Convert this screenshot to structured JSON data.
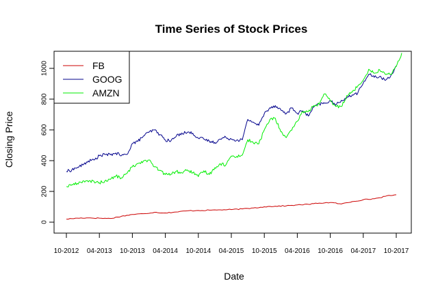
{
  "chart_data": {
    "type": "line",
    "title": "Time Series of Stock Prices",
    "xlabel": "Date",
    "ylabel": "Closing Price",
    "x_ticks": [
      "10-2012",
      "04-2013",
      "10-2013",
      "04-2014",
      "10-2014",
      "04-2015",
      "10-2015",
      "04-2016",
      "10-2016",
      "04-2017",
      "10-2017"
    ],
    "y_ticks": [
      0,
      200,
      400,
      600,
      800,
      1000
    ],
    "ylim": [
      -30,
      1130
    ],
    "xlim": [
      "2012-08",
      "2017-12"
    ],
    "grid": false,
    "legend_position": "top-left",
    "series": [
      {
        "name": "FB",
        "color": "#cc0000",
        "points": [
          [
            "2012-10",
            20
          ],
          [
            "2012-12",
            26
          ],
          [
            "2013-02",
            28
          ],
          [
            "2013-04",
            26
          ],
          [
            "2013-06",
            24
          ],
          [
            "2013-08",
            38
          ],
          [
            "2013-10",
            50
          ],
          [
            "2013-12",
            55
          ],
          [
            "2014-02",
            64
          ],
          [
            "2014-04",
            60
          ],
          [
            "2014-06",
            66
          ],
          [
            "2014-08",
            74
          ],
          [
            "2014-10",
            76
          ],
          [
            "2014-12",
            78
          ],
          [
            "2015-02",
            80
          ],
          [
            "2015-04",
            82
          ],
          [
            "2015-06",
            86
          ],
          [
            "2015-08",
            92
          ],
          [
            "2015-10",
            100
          ],
          [
            "2015-12",
            104
          ],
          [
            "2016-02",
            106
          ],
          [
            "2016-04",
            112
          ],
          [
            "2016-06",
            116
          ],
          [
            "2016-08",
            124
          ],
          [
            "2016-10",
            128
          ],
          [
            "2016-12",
            118
          ],
          [
            "2017-02",
            134
          ],
          [
            "2017-04",
            146
          ],
          [
            "2017-06",
            152
          ],
          [
            "2017-08",
            168
          ],
          [
            "2017-10",
            178
          ]
        ]
      },
      {
        "name": "GOOG",
        "color": "#00008b",
        "points": [
          [
            "2012-10",
            330
          ],
          [
            "2012-11",
            340
          ],
          [
            "2012-12",
            356
          ],
          [
            "2013-01",
            372
          ],
          [
            "2013-02",
            398
          ],
          [
            "2013-03",
            404
          ],
          [
            "2013-04",
            432
          ],
          [
            "2013-05",
            440
          ],
          [
            "2013-06",
            438
          ],
          [
            "2013-07",
            450
          ],
          [
            "2013-08",
            432
          ],
          [
            "2013-09",
            440
          ],
          [
            "2013-10",
            512
          ],
          [
            "2013-11",
            525
          ],
          [
            "2013-12",
            560
          ],
          [
            "2014-01",
            584
          ],
          [
            "2014-02",
            600
          ],
          [
            "2014-03",
            570
          ],
          [
            "2014-04",
            534
          ],
          [
            "2014-05",
            528
          ],
          [
            "2014-06",
            560
          ],
          [
            "2014-07",
            580
          ],
          [
            "2014-08",
            584
          ],
          [
            "2014-09",
            578
          ],
          [
            "2014-10",
            546
          ],
          [
            "2014-11",
            540
          ],
          [
            "2014-12",
            526
          ],
          [
            "2015-01",
            518
          ],
          [
            "2015-02",
            540
          ],
          [
            "2015-03",
            552
          ],
          [
            "2015-04",
            540
          ],
          [
            "2015-05",
            534
          ],
          [
            "2015-06",
            536
          ],
          [
            "2015-07",
            668
          ],
          [
            "2015-08",
            650
          ],
          [
            "2015-09",
            630
          ],
          [
            "2015-10",
            706
          ],
          [
            "2015-11",
            744
          ],
          [
            "2015-12",
            758
          ],
          [
            "2016-01",
            730
          ],
          [
            "2016-02",
            705
          ],
          [
            "2016-03",
            742
          ],
          [
            "2016-04",
            708
          ],
          [
            "2016-05",
            724
          ],
          [
            "2016-06",
            690
          ],
          [
            "2016-07",
            748
          ],
          [
            "2016-08",
            768
          ],
          [
            "2016-09",
            772
          ],
          [
            "2016-10",
            790
          ],
          [
            "2016-11",
            760
          ],
          [
            "2016-12",
            792
          ],
          [
            "2017-01",
            808
          ],
          [
            "2017-02",
            828
          ],
          [
            "2017-03",
            840
          ],
          [
            "2017-04",
            905
          ],
          [
            "2017-05",
            962
          ],
          [
            "2017-06",
            942
          ],
          [
            "2017-07",
            948
          ],
          [
            "2017-08",
            922
          ],
          [
            "2017-09",
            952
          ],
          [
            "2017-10",
            1016
          ]
        ]
      },
      {
        "name": "AMZN",
        "color": "#00ee00",
        "points": [
          [
            "2012-10",
            232
          ],
          [
            "2012-11",
            244
          ],
          [
            "2012-12",
            252
          ],
          [
            "2013-01",
            268
          ],
          [
            "2013-02",
            262
          ],
          [
            "2013-03",
            266
          ],
          [
            "2013-04",
            256
          ],
          [
            "2013-05",
            268
          ],
          [
            "2013-06",
            278
          ],
          [
            "2013-07",
            300
          ],
          [
            "2013-08",
            288
          ],
          [
            "2013-09",
            316
          ],
          [
            "2013-10",
            360
          ],
          [
            "2013-11",
            382
          ],
          [
            "2013-12",
            398
          ],
          [
            "2014-01",
            404
          ],
          [
            "2014-02",
            360
          ],
          [
            "2014-03",
            336
          ],
          [
            "2014-04",
            310
          ],
          [
            "2014-05",
            312
          ],
          [
            "2014-06",
            330
          ],
          [
            "2014-07",
            320
          ],
          [
            "2014-08",
            340
          ],
          [
            "2014-09",
            322
          ],
          [
            "2014-10",
            296
          ],
          [
            "2014-11",
            334
          ],
          [
            "2014-12",
            310
          ],
          [
            "2015-01",
            354
          ],
          [
            "2015-02",
            380
          ],
          [
            "2015-03",
            372
          ],
          [
            "2015-04",
            430
          ],
          [
            "2015-05",
            428
          ],
          [
            "2015-06",
            436
          ],
          [
            "2015-07",
            536
          ],
          [
            "2015-08",
            516
          ],
          [
            "2015-09",
            510
          ],
          [
            "2015-10",
            600
          ],
          [
            "2015-11",
            666
          ],
          [
            "2015-12",
            676
          ],
          [
            "2016-01",
            588
          ],
          [
            "2016-02",
            550
          ],
          [
            "2016-03",
            598
          ],
          [
            "2016-04",
            656
          ],
          [
            "2016-05",
            720
          ],
          [
            "2016-06",
            718
          ],
          [
            "2016-07",
            758
          ],
          [
            "2016-08",
            768
          ],
          [
            "2016-09",
            834
          ],
          [
            "2016-10",
            790
          ],
          [
            "2016-11",
            752
          ],
          [
            "2016-12",
            752
          ],
          [
            "2017-01",
            823
          ],
          [
            "2017-02",
            846
          ],
          [
            "2017-03",
            886
          ],
          [
            "2017-04",
            924
          ],
          [
            "2017-05",
            994
          ],
          [
            "2017-06",
            968
          ],
          [
            "2017-07",
            990
          ],
          [
            "2017-08",
            962
          ],
          [
            "2017-09",
            962
          ],
          [
            "2017-10",
            1012
          ],
          [
            "2017-11",
            1100
          ]
        ]
      }
    ]
  }
}
